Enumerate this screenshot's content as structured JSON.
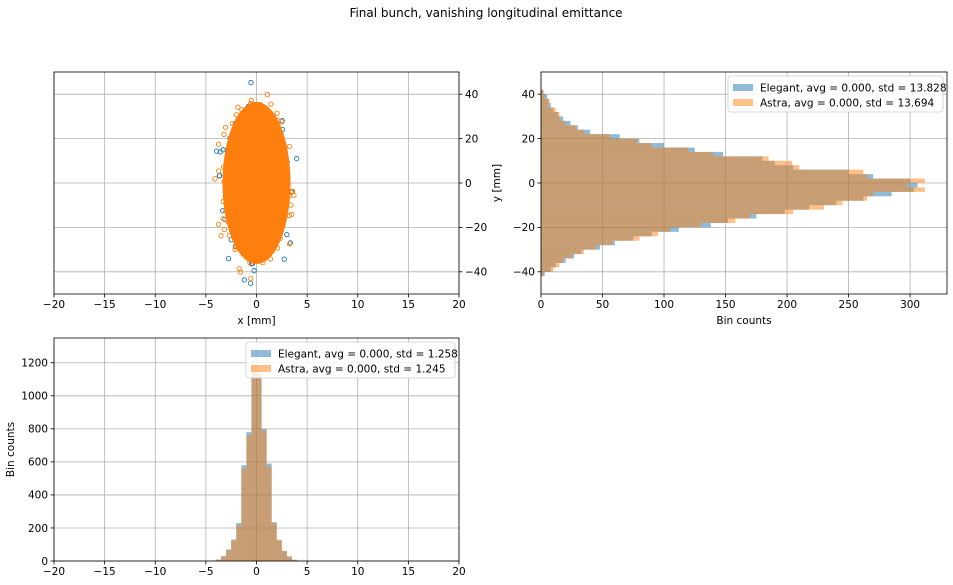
{
  "figure": {
    "suptitle": "Final bunch, vanishing longitudinal emittance"
  },
  "colors": {
    "elegant": "#1f77b4",
    "astra": "#ff7f0e",
    "grid": "#b0b0b0",
    "axis": "#000000"
  },
  "chart_data": [
    {
      "id": "scatter-xy",
      "type": "scatter",
      "title": "",
      "xlabel": "x [mm]",
      "ylabel": "",
      "xlim": [
        -20,
        20
      ],
      "ylim": [
        -50,
        50
      ],
      "xticks": [
        -20,
        -15,
        -10,
        -5,
        0,
        5,
        10,
        15,
        20
      ],
      "yticks": [
        -40,
        -20,
        0,
        20,
        40
      ],
      "yaxis_side": "right",
      "grid": true,
      "series": [
        {
          "name": "Elegant",
          "marker": "open-circle",
          "x_std": 1.258,
          "y_std": 13.828,
          "x_range": [
            -4.6,
            4.0
          ],
          "y_range": [
            -45,
            44
          ]
        },
        {
          "name": "Astra",
          "marker": "open-circle",
          "x_std": 1.245,
          "y_std": 13.694,
          "x_range": [
            -4.5,
            4.2
          ],
          "y_range": [
            -44,
            43
          ]
        }
      ]
    },
    {
      "id": "hist-y",
      "type": "bar",
      "orientation": "horizontal",
      "title": "",
      "xlabel": "Bin counts",
      "ylabel": "y [mm]",
      "xlim": [
        0,
        330
      ],
      "ylim": [
        -50,
        50
      ],
      "xticks": [
        0,
        50,
        100,
        150,
        200,
        250,
        300
      ],
      "yticks": [
        -40,
        -20,
        0,
        20,
        40
      ],
      "grid": true,
      "legend": "top-right",
      "legend_entries": [
        "Elegant, avg = 0.000, std = 13.828",
        "Astra, avg = 0.000, std = 13.694"
      ],
      "bin_centers": [
        -41,
        -39,
        -37,
        -35,
        -33,
        -31,
        -29,
        -27,
        -25,
        -23,
        -21,
        -19,
        -17,
        -15,
        -13,
        -11,
        -9,
        -7,
        -5,
        -3,
        -1,
        1,
        3,
        5,
        7,
        9,
        11,
        13,
        15,
        17,
        19,
        21,
        23,
        25,
        27,
        29,
        31,
        33,
        35,
        37,
        39,
        41
      ],
      "series": [
        {
          "name": "Elegant",
          "values": [
            3,
            8,
            12,
            20,
            27,
            33,
            48,
            60,
            75,
            90,
            112,
            138,
            152,
            175,
            198,
            218,
            240,
            262,
            285,
            303,
            306,
            300,
            270,
            250,
            205,
            190,
            180,
            148,
            125,
            100,
            80,
            64,
            40,
            30,
            24,
            18,
            14,
            10,
            8,
            6,
            5,
            2
          ]
        },
        {
          "name": "Astra",
          "values": [
            2,
            10,
            15,
            18,
            25,
            35,
            45,
            58,
            80,
            95,
            105,
            130,
            158,
            170,
            205,
            230,
            245,
            265,
            270,
            312,
            298,
            312,
            265,
            262,
            210,
            204,
            185,
            140,
            120,
            90,
            78,
            56,
            35,
            28,
            20,
            15,
            15,
            12,
            6,
            7,
            3,
            2
          ]
        }
      ]
    },
    {
      "id": "hist-x",
      "type": "bar",
      "title": "",
      "xlabel": "",
      "ylabel": "Bin counts",
      "xlim": [
        -20,
        20
      ],
      "ylim": [
        0,
        1350
      ],
      "xticks": [
        -20,
        -15,
        -10,
        -5,
        0,
        5,
        10,
        15,
        20
      ],
      "yticks": [
        0,
        200,
        400,
        600,
        800,
        1000,
        1200
      ],
      "grid": true,
      "legend": "top-right",
      "legend_entries": [
        "Elegant, avg = 0.000, std = 1.258",
        "Astra, avg = 0.000, std = 1.245"
      ],
      "bin_centers": [
        -4.25,
        -3.75,
        -3.25,
        -2.75,
        -2.25,
        -1.75,
        -1.25,
        -0.75,
        -0.25,
        0.25,
        0.75,
        1.25,
        1.75,
        2.25,
        2.75,
        3.25,
        3.75,
        4.25
      ],
      "series": [
        {
          "name": "Elegant",
          "values": [
            3,
            8,
            30,
            70,
            130,
            230,
            580,
            780,
            1180,
            1130,
            800,
            590,
            235,
            125,
            60,
            28,
            8,
            2
          ]
        },
        {
          "name": "Astra",
          "values": [
            2,
            9,
            28,
            65,
            125,
            215,
            560,
            760,
            1190,
            1150,
            790,
            570,
            230,
            130,
            62,
            25,
            6,
            2
          ]
        }
      ]
    }
  ]
}
